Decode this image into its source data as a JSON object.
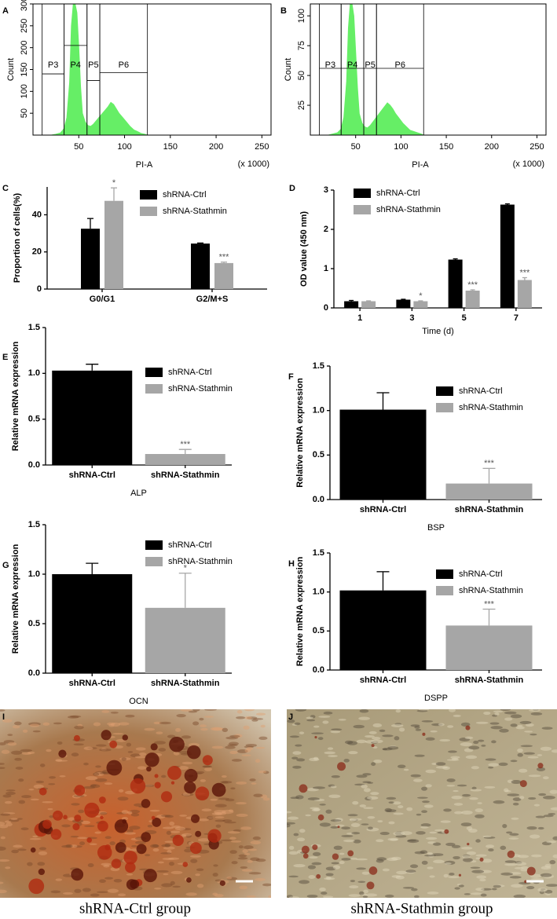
{
  "chart_data": [
    {
      "type": "area",
      "panel": "A",
      "ylabel": "Count",
      "xlabel": "PI-A",
      "x_note": "(x 1000)",
      "color": "#66ee66",
      "x": [
        20,
        25,
        30,
        34,
        37,
        40,
        42,
        44,
        46,
        48,
        50,
        52,
        54,
        57,
        60,
        63,
        66,
        70,
        74,
        78,
        82,
        85,
        88,
        91,
        94,
        98,
        102,
        106,
        110,
        114,
        118,
        122,
        125
      ],
      "values": [
        0,
        2,
        5,
        15,
        40,
        120,
        250,
        300,
        300,
        280,
        200,
        110,
        50,
        30,
        22,
        20,
        25,
        35,
        45,
        55,
        65,
        75,
        70,
        60,
        50,
        40,
        30,
        20,
        12,
        8,
        4,
        2,
        0
      ],
      "xlim": [
        0,
        260
      ],
      "xticks": [
        50,
        100,
        150,
        200,
        250
      ],
      "ylim": [
        0,
        300
      ],
      "yticks": [
        50,
        100,
        150,
        200,
        250,
        300
      ],
      "gates": [
        {
          "label": "P3",
          "range": [
            10,
            34
          ],
          "level": 140
        },
        {
          "label": "P4",
          "range": [
            34,
            59
          ],
          "level": 205
        },
        {
          "label": "P5",
          "range": [
            59,
            73
          ],
          "level": 125
        },
        {
          "label": "P6",
          "range": [
            73,
            125
          ],
          "level": 143
        }
      ]
    },
    {
      "type": "area",
      "panel": "B",
      "ylabel": "Count",
      "xlabel": "PI-A",
      "x_note": "(x 1000)",
      "color": "#66ee66",
      "x": [
        20,
        25,
        30,
        34,
        37,
        40,
        42,
        44,
        46,
        48,
        50,
        52,
        54,
        57,
        60,
        63,
        66,
        70,
        74,
        78,
        82,
        85,
        88,
        91,
        94,
        98,
        102,
        106,
        110,
        114,
        118,
        122,
        125
      ],
      "values": [
        0,
        1,
        2,
        5,
        15,
        45,
        90,
        110,
        110,
        100,
        70,
        40,
        18,
        10,
        7,
        6,
        8,
        12,
        16,
        20,
        24,
        27,
        25,
        22,
        18,
        14,
        10,
        7,
        4,
        3,
        2,
        1,
        0
      ],
      "xlim": [
        0,
        260
      ],
      "xticks": [
        50,
        100,
        150,
        200,
        250
      ],
      "ylim": [
        0,
        110
      ],
      "yticks": [
        25,
        50,
        75,
        100
      ],
      "gates": [
        {
          "label": "P3",
          "range": [
            10,
            34
          ],
          "level": 56
        },
        {
          "label": "P4",
          "range": [
            34,
            59
          ],
          "level": 56
        },
        {
          "label": "P5",
          "range": [
            59,
            73
          ],
          "level": 56
        },
        {
          "label": "P6",
          "range": [
            73,
            125
          ],
          "level": 56
        }
      ]
    },
    {
      "type": "bar",
      "panel": "C",
      "ylabel": "Proportion of cells(%)",
      "categories": [
        "G0/G1",
        "G2/M+S"
      ],
      "series": [
        {
          "name": "shRNA-Ctrl",
          "color": "#000000",
          "values": [
            32.5,
            24.5
          ],
          "errors": [
            5.5,
            0.3
          ]
        },
        {
          "name": "shRNA-Stathmin",
          "color": "#a6a6a6",
          "values": [
            47.5,
            14
          ],
          "errors": [
            7,
            0.5
          ],
          "annotations": [
            "*",
            "***"
          ]
        }
      ],
      "ylim": [
        0,
        55
      ],
      "yticks": [
        0,
        20,
        40
      ]
    },
    {
      "type": "bar",
      "panel": "D",
      "ylabel": "OD value (450 nm)",
      "xlabel": "Time (d)",
      "categories": [
        "1",
        "3",
        "5",
        "7"
      ],
      "series": [
        {
          "name": "shRNA-Ctrl",
          "color": "#000000",
          "values": [
            0.17,
            0.21,
            1.23,
            2.63
          ],
          "errors": [
            0.02,
            0.01,
            0.02,
            0.02
          ]
        },
        {
          "name": "shRNA-Stathmin",
          "color": "#a6a6a6",
          "values": [
            0.17,
            0.17,
            0.44,
            0.71
          ],
          "errors": [
            0.01,
            0.01,
            0.02,
            0.06
          ],
          "annotations": [
            null,
            "*",
            "***",
            "***"
          ]
        }
      ],
      "ylim": [
        0,
        3
      ],
      "yticks": [
        0,
        1,
        2,
        3
      ]
    },
    {
      "type": "bar",
      "panel": "E",
      "ylabel": "Relative mRNA expression",
      "xlabel": "ALP",
      "categories": [
        "shRNA-Ctrl",
        "shRNA-Stathmin"
      ],
      "series": [
        {
          "name": "shRNA-Ctrl",
          "color": "#000000",
          "values": [
            1.03,
            null
          ],
          "errors": [
            0.07,
            null
          ]
        },
        {
          "name": "shRNA-Stathmin",
          "color": "#a6a6a6",
          "values": [
            null,
            0.12
          ],
          "errors": [
            null,
            0.05
          ],
          "annotations": [
            null,
            "***"
          ]
        }
      ],
      "ylim": [
        0,
        1.5
      ],
      "yticks": [
        {
          "value": 0,
          "label": "0.0"
        },
        0.5,
        {
          "value": 1,
          "label": "1.0"
        },
        1.5
      ]
    },
    {
      "type": "bar",
      "panel": "F",
      "ylabel": "Relative mRNA expression",
      "xlabel": "BSP",
      "categories": [
        "shRNA-Ctrl",
        "shRNA-Stathmin"
      ],
      "series": [
        {
          "name": "shRNA-Ctrl",
          "color": "#000000",
          "values": [
            1.01,
            null
          ],
          "errors": [
            0.19,
            null
          ]
        },
        {
          "name": "shRNA-Stathmin",
          "color": "#a6a6a6",
          "values": [
            null,
            0.18
          ],
          "errors": [
            null,
            0.17
          ],
          "annotations": [
            null,
            "***"
          ]
        }
      ],
      "ylim": [
        0,
        1.5
      ],
      "yticks": [
        {
          "value": 0,
          "label": "0.0"
        },
        0.5,
        {
          "value": 1,
          "label": "1.0"
        },
        1.5
      ]
    },
    {
      "type": "bar",
      "panel": "G",
      "ylabel": "Relative mRNA expression",
      "xlabel": "OCN",
      "categories": [
        "shRNA-Ctrl",
        "shRNA-Stathmin"
      ],
      "series": [
        {
          "name": "shRNA-Ctrl",
          "color": "#000000",
          "values": [
            1.0,
            null
          ],
          "errors": [
            0.11,
            null
          ]
        },
        {
          "name": "shRNA-Stathmin",
          "color": "#a6a6a6",
          "values": [
            null,
            0.66
          ],
          "errors": [
            null,
            0.35
          ],
          "annotations": [
            null,
            "*"
          ]
        }
      ],
      "ylim": [
        0,
        1.5
      ],
      "yticks": [
        {
          "value": 0,
          "label": "0.0"
        },
        0.5,
        {
          "value": 1,
          "label": "1.0"
        },
        1.5
      ]
    },
    {
      "type": "bar",
      "panel": "H",
      "ylabel": "Relative mRNA expression",
      "xlabel": "DSPP",
      "categories": [
        "shRNA-Ctrl",
        "shRNA-Stathmin"
      ],
      "series": [
        {
          "name": "shRNA-Ctrl",
          "color": "#000000",
          "values": [
            1.02,
            null
          ],
          "errors": [
            0.24,
            null
          ]
        },
        {
          "name": "shRNA-Stathmin",
          "color": "#a6a6a6",
          "values": [
            null,
            0.57
          ],
          "errors": [
            null,
            0.21
          ],
          "annotations": [
            null,
            "***"
          ]
        }
      ],
      "ylim": [
        0,
        1.5
      ],
      "yticks": [
        {
          "value": 0,
          "label": "0.0"
        },
        0.5,
        {
          "value": 1,
          "label": "1.0"
        },
        1.5
      ]
    },
    {
      "type": "image",
      "panel": "I",
      "caption": "shRNA-Ctrl group"
    },
    {
      "type": "image",
      "panel": "J",
      "caption": "shRNA-Stathmin group"
    }
  ]
}
